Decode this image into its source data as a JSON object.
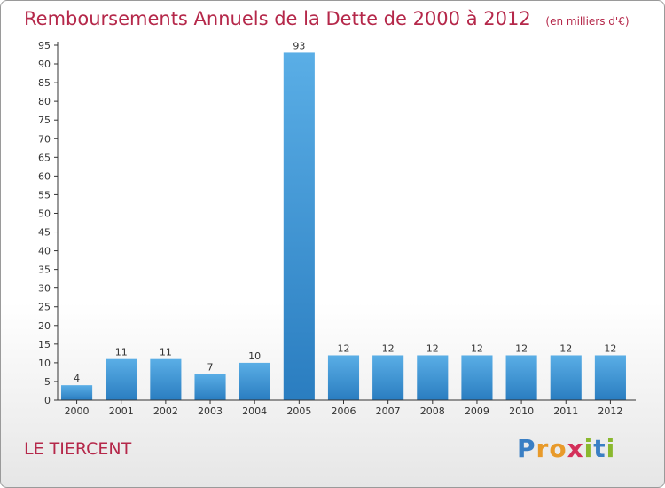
{
  "chart_data": {
    "type": "bar",
    "title": "Remboursements Annuels de la Dette de 2000 à 2012",
    "subtitle": "(en milliers d'€)",
    "categories": [
      "2000",
      "2001",
      "2002",
      "2003",
      "2004",
      "2005",
      "2006",
      "2007",
      "2008",
      "2009",
      "2010",
      "2011",
      "2012"
    ],
    "values": [
      4,
      11,
      11,
      7,
      10,
      93,
      12,
      12,
      12,
      12,
      12,
      12,
      12
    ],
    "ylim": [
      0,
      95
    ],
    "yticks": [
      0,
      5,
      10,
      15,
      20,
      25,
      30,
      35,
      40,
      45,
      50,
      55,
      60,
      65,
      70,
      75,
      80,
      85,
      90,
      95
    ],
    "grid": false,
    "legend": "none",
    "bar_color_top": "#5aaee6",
    "bar_color_bottom": "#2a7dc0"
  },
  "footer": {
    "commune": "LE TIERCENT",
    "logo": {
      "letters": [
        "P",
        "r",
        "o",
        "x",
        "i",
        "t",
        "i"
      ],
      "colors": [
        "#3a7fc4",
        "#e89a2a",
        "#e89a2a",
        "#d4305a",
        "#8ab82e",
        "#3a7fc4",
        "#8ab82e"
      ]
    }
  }
}
